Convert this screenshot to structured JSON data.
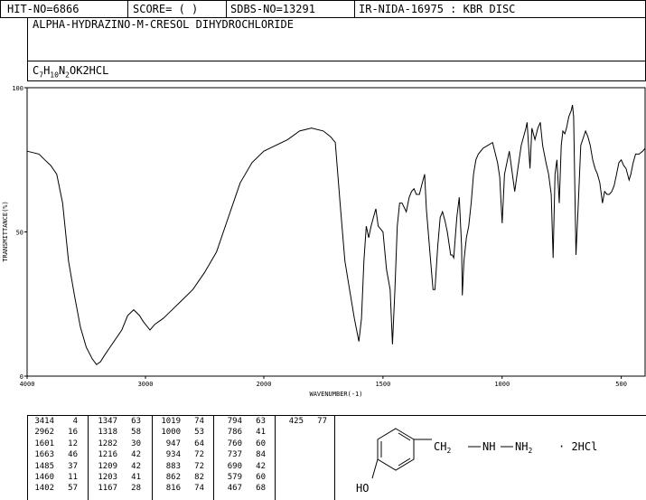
{
  "header": {
    "hit_no": "HIT-NO=6866",
    "score": "SCORE=  (   )",
    "sdbs_no": "SDBS-NO=13291",
    "method": "IR-NIDA-16975 : KBR DISC"
  },
  "compound_name": "ALPHA-HYDRAZINO-M-CRESOL DIHYDROCHLORIDE",
  "formula": {
    "parts": [
      "C",
      "7",
      "H",
      "10",
      "N",
      "2",
      "OK2HCL"
    ]
  },
  "chart_data": {
    "type": "line",
    "xlabel": "WAVENUMBER(-1)",
    "ylabel": "TRANSMITTANCE(%)",
    "xlim": [
      4000,
      400
    ],
    "ylim": [
      0,
      100
    ],
    "x_ticks": [
      4000,
      3000,
      2000,
      1500,
      1000,
      500
    ],
    "y_ticks": [
      0,
      50,
      100
    ],
    "series": [
      {
        "points": [
          [
            4000,
            78
          ],
          [
            3900,
            77
          ],
          [
            3850,
            75
          ],
          [
            3800,
            73
          ],
          [
            3750,
            70
          ],
          [
            3700,
            60
          ],
          [
            3650,
            40
          ],
          [
            3600,
            28
          ],
          [
            3550,
            17
          ],
          [
            3500,
            10
          ],
          [
            3450,
            6
          ],
          [
            3414,
            4
          ],
          [
            3380,
            5
          ],
          [
            3350,
            7
          ],
          [
            3300,
            10
          ],
          [
            3250,
            13
          ],
          [
            3200,
            16
          ],
          [
            3150,
            21
          ],
          [
            3100,
            23
          ],
          [
            3050,
            21
          ],
          [
            3020,
            19
          ],
          [
            2962,
            16
          ],
          [
            2920,
            18
          ],
          [
            2850,
            20
          ],
          [
            2800,
            22
          ],
          [
            2700,
            26
          ],
          [
            2600,
            30
          ],
          [
            2500,
            36
          ],
          [
            2400,
            43
          ],
          [
            2300,
            55
          ],
          [
            2200,
            67
          ],
          [
            2100,
            74
          ],
          [
            2000,
            78
          ],
          [
            1900,
            82
          ],
          [
            1850,
            85
          ],
          [
            1800,
            86
          ],
          [
            1750,
            85
          ],
          [
            1720,
            83
          ],
          [
            1700,
            81
          ],
          [
            1680,
            60
          ],
          [
            1660,
            40
          ],
          [
            1640,
            30
          ],
          [
            1620,
            20
          ],
          [
            1601,
            12
          ],
          [
            1590,
            20
          ],
          [
            1580,
            40
          ],
          [
            1570,
            52
          ],
          [
            1560,
            48
          ],
          [
            1550,
            52
          ],
          [
            1540,
            55
          ],
          [
            1530,
            58
          ],
          [
            1520,
            52
          ],
          [
            1500,
            50
          ],
          [
            1485,
            37
          ],
          [
            1470,
            30
          ],
          [
            1460,
            11
          ],
          [
            1450,
            30
          ],
          [
            1440,
            52
          ],
          [
            1430,
            60
          ],
          [
            1420,
            60
          ],
          [
            1402,
            57
          ],
          [
            1390,
            62
          ],
          [
            1380,
            64
          ],
          [
            1370,
            65
          ],
          [
            1360,
            63
          ],
          [
            1347,
            63
          ],
          [
            1335,
            67
          ],
          [
            1325,
            70
          ],
          [
            1318,
            58
          ],
          [
            1300,
            40
          ],
          [
            1290,
            30
          ],
          [
            1282,
            30
          ],
          [
            1270,
            45
          ],
          [
            1260,
            55
          ],
          [
            1250,
            57
          ],
          [
            1240,
            54
          ],
          [
            1230,
            50
          ],
          [
            1216,
            42
          ],
          [
            1209,
            42
          ],
          [
            1203,
            41
          ],
          [
            1190,
            55
          ],
          [
            1180,
            62
          ],
          [
            1170,
            45
          ],
          [
            1167,
            28
          ],
          [
            1160,
            40
          ],
          [
            1150,
            48
          ],
          [
            1140,
            52
          ],
          [
            1130,
            60
          ],
          [
            1120,
            70
          ],
          [
            1110,
            75
          ],
          [
            1100,
            77
          ],
          [
            1080,
            79
          ],
          [
            1060,
            80
          ],
          [
            1040,
            81
          ],
          [
            1019,
            74
          ],
          [
            1010,
            69
          ],
          [
            1000,
            53
          ],
          [
            990,
            70
          ],
          [
            970,
            78
          ],
          [
            947,
            64
          ],
          [
            934,
            72
          ],
          [
            920,
            80
          ],
          [
            910,
            83
          ],
          [
            900,
            86
          ],
          [
            895,
            88
          ],
          [
            883,
            72
          ],
          [
            875,
            86
          ],
          [
            862,
            82
          ],
          [
            850,
            86
          ],
          [
            840,
            88
          ],
          [
            830,
            80
          ],
          [
            816,
            74
          ],
          [
            805,
            70
          ],
          [
            794,
            63
          ],
          [
            786,
            41
          ],
          [
            778,
            70
          ],
          [
            770,
            75
          ],
          [
            760,
            60
          ],
          [
            752,
            80
          ],
          [
            745,
            85
          ],
          [
            737,
            84
          ],
          [
            730,
            86
          ],
          [
            720,
            90
          ],
          [
            710,
            92
          ],
          [
            705,
            94
          ],
          [
            700,
            90
          ],
          [
            690,
            42
          ],
          [
            680,
            60
          ],
          [
            670,
            80
          ],
          [
            650,
            85
          ],
          [
            640,
            83
          ],
          [
            630,
            80
          ],
          [
            620,
            75
          ],
          [
            610,
            72
          ],
          [
            600,
            70
          ],
          [
            590,
            67
          ],
          [
            579,
            60
          ],
          [
            570,
            64
          ],
          [
            560,
            63
          ],
          [
            550,
            63
          ],
          [
            540,
            64
          ],
          [
            530,
            66
          ],
          [
            520,
            70
          ],
          [
            510,
            74
          ],
          [
            500,
            75
          ],
          [
            490,
            73
          ],
          [
            480,
            72
          ],
          [
            467,
            68
          ],
          [
            460,
            70
          ],
          [
            450,
            74
          ],
          [
            440,
            77
          ],
          [
            425,
            77
          ],
          [
            410,
            78
          ],
          [
            400,
            79
          ]
        ]
      }
    ]
  },
  "peak_table": [
    [
      [
        "3414",
        "4"
      ],
      [
        "2962",
        "16"
      ],
      [
        "1601",
        "12"
      ],
      [
        "1663",
        "46"
      ],
      [
        "1485",
        "37"
      ],
      [
        "1460",
        "11"
      ],
      [
        "1402",
        "57"
      ]
    ],
    [
      [
        "1347",
        "63"
      ],
      [
        "1318",
        "58"
      ],
      [
        "1282",
        "30"
      ],
      [
        "1216",
        "42"
      ],
      [
        "1209",
        "42"
      ],
      [
        "1203",
        "41"
      ],
      [
        "1167",
        "28"
      ]
    ],
    [
      [
        "1019",
        "74"
      ],
      [
        "1000",
        "53"
      ],
      [
        "947",
        "64"
      ],
      [
        "934",
        "72"
      ],
      [
        "883",
        "72"
      ],
      [
        "862",
        "82"
      ],
      [
        "816",
        "74"
      ]
    ],
    [
      [
        "794",
        "63"
      ],
      [
        "786",
        "41"
      ],
      [
        "760",
        "60"
      ],
      [
        "737",
        "84"
      ],
      [
        "690",
        "42"
      ],
      [
        "579",
        "60"
      ],
      [
        "467",
        "68"
      ]
    ],
    [
      [
        "425",
        "77"
      ]
    ]
  ],
  "structure": {
    "oh": "HO",
    "chain_ch2": "CH",
    "ch2_sub": "2",
    "nh": "NH",
    "nh2": "NH",
    "nh2_sub": "2",
    "salt": "· 2HCl"
  }
}
